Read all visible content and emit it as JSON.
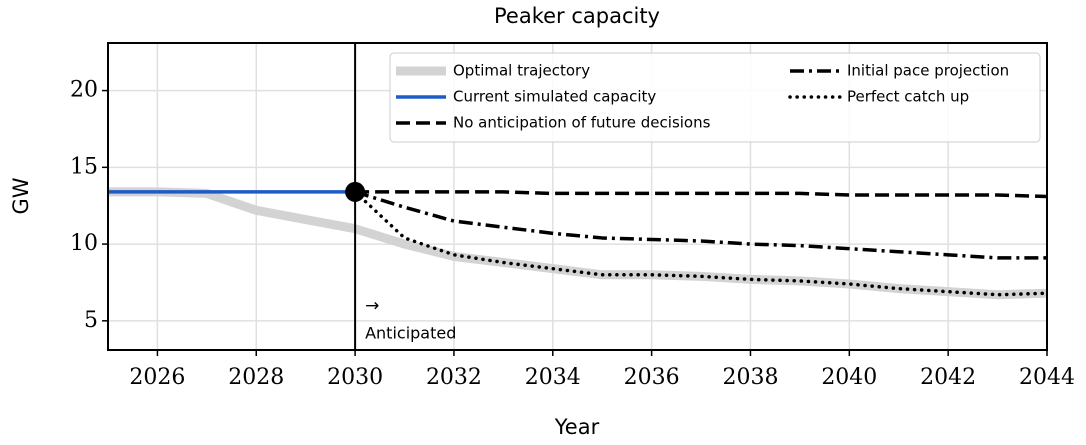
{
  "chart_data": {
    "type": "line",
    "title": "Peaker capacity",
    "xlabel": "Year",
    "ylabel": "GW",
    "x": [
      2025,
      2026,
      2027,
      2028,
      2029,
      2030,
      2031,
      2032,
      2033,
      2034,
      2035,
      2036,
      2037,
      2038,
      2039,
      2040,
      2041,
      2042,
      2043,
      2044
    ],
    "series": [
      {
        "name": "Optimal trajectory",
        "color": "#d3d3d3",
        "style": "solid",
        "width": 9,
        "values": [
          13.4,
          13.4,
          13.3,
          12.2,
          11.6,
          11.0,
          10.0,
          9.2,
          8.8,
          8.4,
          8.0,
          8.0,
          7.9,
          7.7,
          7.6,
          7.4,
          7.1,
          6.9,
          6.7,
          6.8
        ]
      },
      {
        "name": "Current simulated capacity",
        "color": "#1f5bc8",
        "style": "solid",
        "width": 3.5,
        "values": [
          13.4,
          13.4,
          13.4,
          13.4,
          13.4,
          13.4,
          null,
          null,
          null,
          null,
          null,
          null,
          null,
          null,
          null,
          null,
          null,
          null,
          null,
          null
        ]
      },
      {
        "name": "No anticipation of future decisions",
        "color": "#000000",
        "style": "dashed",
        "width": 3.5,
        "values": [
          null,
          null,
          null,
          null,
          null,
          13.4,
          13.4,
          13.4,
          13.4,
          13.3,
          13.3,
          13.3,
          13.3,
          13.3,
          13.3,
          13.2,
          13.2,
          13.2,
          13.2,
          13.1
        ]
      },
      {
        "name": "Initial pace projection",
        "color": "#000000",
        "style": "dashdot",
        "width": 3.5,
        "values": [
          null,
          null,
          null,
          null,
          null,
          13.4,
          12.4,
          11.5,
          11.1,
          10.7,
          10.4,
          10.3,
          10.2,
          10.0,
          9.9,
          9.7,
          9.5,
          9.3,
          9.1,
          9.1
        ]
      },
      {
        "name": "Perfect catch up",
        "color": "#000000",
        "style": "dotted",
        "width": 3.5,
        "values": [
          null,
          null,
          null,
          null,
          null,
          13.4,
          10.4,
          9.3,
          8.8,
          8.4,
          8.0,
          8.0,
          7.9,
          7.7,
          7.6,
          7.4,
          7.1,
          6.9,
          6.7,
          6.8
        ]
      }
    ],
    "xlim": [
      2025,
      2044
    ],
    "xticks": [
      2026,
      2028,
      2030,
      2032,
      2034,
      2036,
      2038,
      2040,
      2042,
      2044
    ],
    "ylim": [
      3.1,
      23.1
    ],
    "yticks": [
      5,
      10,
      15,
      20
    ],
    "grid": true,
    "legend": "upper right",
    "vline": 2030,
    "marker": {
      "x": 2030,
      "y": 13.4
    },
    "annotations": [
      "→",
      "Anticipated"
    ]
  }
}
